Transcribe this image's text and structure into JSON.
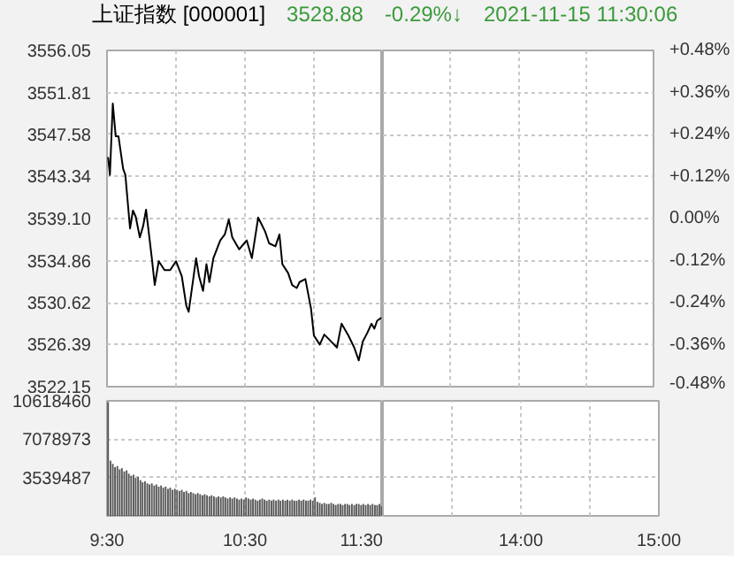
{
  "chart_data": [
    {
      "type": "line",
      "title": "上证指数 [000001]",
      "annotations": [
        "3528.88",
        "-0.29%↓",
        "2021-11-15 11:30:06"
      ],
      "xlim": [
        9.5,
        11.5
      ],
      "xticks": [
        {
          "value": 9.5,
          "label": null
        },
        {
          "value": 10,
          "label": null
        },
        {
          "value": 10.5,
          "label": null
        },
        {
          "value": 11,
          "label": null
        },
        {
          "value": 11.5,
          "label": null
        }
      ],
      "ylim": [
        3522.15,
        3556.05
      ],
      "yticks": [
        {
          "value": 3522.15,
          "label": "3522.15"
        },
        {
          "value": 3526.39,
          "label": "3526.39"
        },
        {
          "value": 3530.62,
          "label": "3530.62"
        },
        {
          "value": 3534.86,
          "label": "3534.86"
        },
        {
          "value": 3539.1,
          "label": "3539.10"
        },
        {
          "value": 3543.34,
          "label": "3543.34"
        },
        {
          "value": 3547.58,
          "label": "3547.58"
        },
        {
          "value": 3551.81,
          "label": "3551.81"
        },
        {
          "value": 3556.05,
          "label": "3556.05"
        }
      ],
      "grid": true,
      "tick_labels": "y",
      "series": [
        {
          "color": "#000000",
          "x": [
            9.508,
            9.521,
            9.542,
            9.563,
            9.583,
            9.617,
            9.633,
            9.667,
            9.688,
            9.708,
            9.738,
            9.763,
            9.783,
            9.825,
            9.846,
            9.875,
            9.917,
            9.958,
            10,
            10.042,
            10.075,
            10.092,
            10.146,
            10.167,
            10.196,
            10.221,
            10.242,
            10.271,
            10.321,
            10.354,
            10.383,
            10.408,
            10.458,
            10.513,
            10.55,
            10.596,
            10.646,
            10.675,
            10.721,
            10.75,
            10.771,
            10.813,
            10.842,
            10.875,
            10.896,
            10.938,
            10.979,
            11,
            11.042,
            11.075,
            11.104,
            11.167,
            11.2,
            11.25,
            11.292,
            11.325,
            11.354,
            11.388,
            11.417,
            11.438,
            11.458,
            11.488
          ],
          "values": [
            3545.3,
            3543.5,
            3550.7,
            3547.4,
            3547.4,
            3544.1,
            3543.5,
            3538.1,
            3539.9,
            3539.3,
            3537.2,
            3538.4,
            3540.0,
            3535.1,
            3532.4,
            3534.8,
            3533.9,
            3533.9,
            3534.8,
            3533.3,
            3530.3,
            3529.7,
            3535.1,
            3533.3,
            3531.8,
            3534.5,
            3532.7,
            3535.1,
            3536.9,
            3537.5,
            3539.0,
            3537.2,
            3536.0,
            3536.9,
            3535.1,
            3539.2,
            3537.8,
            3536.6,
            3536.3,
            3537.5,
            3534.5,
            3533.6,
            3532.4,
            3532.1,
            3532.7,
            3533.0,
            3530.0,
            3527.3,
            3526.4,
            3527.4,
            3527.0,
            3526.1,
            3528.5,
            3527.3,
            3526.1,
            3524.8,
            3526.7,
            3527.6,
            3528.5,
            3528.0,
            3528.8,
            3529.1
          ]
        }
      ]
    },
    {
      "type": "line",
      "xlim": [
        13,
        15
      ],
      "xticks": [
        {
          "value": 13.5,
          "label": null
        },
        {
          "value": 14,
          "label": null
        },
        {
          "value": 14.5,
          "label": null
        },
        {
          "value": 15,
          "label": null
        }
      ],
      "y2lim": [
        -0.48,
        0.48
      ],
      "y2ticks": [
        {
          "value": -0.48,
          "label": "-0.48%"
        },
        {
          "value": -0.36,
          "label": "-0.36%"
        },
        {
          "value": -0.24,
          "label": "-0.24%"
        },
        {
          "value": -0.12,
          "label": "-0.12%"
        },
        {
          "value": 0,
          "label": "0.00%"
        },
        {
          "value": 0.12,
          "label": "+0.12%"
        },
        {
          "value": 0.24,
          "label": "+0.24%"
        },
        {
          "value": 0.36,
          "label": "+0.36%"
        },
        {
          "value": 0.48,
          "label": "+0.48%"
        }
      ],
      "grid": true,
      "tick_labels": "y"
    },
    {
      "type": "bar",
      "xlim": [
        9.5,
        11.5
      ],
      "xticks": [
        {
          "value": 9.5,
          "label": "9:30"
        },
        {
          "value": 10,
          "label": null
        },
        {
          "value": 10.5,
          "label": "10:30"
        },
        {
          "value": 11,
          "label": null
        },
        {
          "value": 11.5,
          "label": "11:30"
        }
      ],
      "ylim": [
        0,
        10618460
      ],
      "yticks": [
        {
          "value": 0,
          "label": null
        },
        3539487,
        7078973,
        10618460
      ],
      "grid": true,
      "series": [
        {
          "color": "#555555",
          "x": [
            9.508,
            9.525,
            9.542,
            9.558,
            9.575,
            9.592,
            9.608,
            9.625,
            9.642,
            9.658,
            9.675,
            9.692,
            9.708,
            9.725,
            9.742,
            9.758,
            9.775,
            9.792,
            9.808,
            9.825,
            9.842,
            9.858,
            9.875,
            9.892,
            9.908,
            9.925,
            9.942,
            9.958,
            9.975,
            9.992,
            10.008,
            10.025,
            10.042,
            10.058,
            10.075,
            10.092,
            10.108,
            10.125,
            10.142,
            10.158,
            10.175,
            10.192,
            10.208,
            10.225,
            10.242,
            10.258,
            10.275,
            10.292,
            10.308,
            10.325,
            10.342,
            10.358,
            10.375,
            10.392,
            10.408,
            10.425,
            10.442,
            10.458,
            10.475,
            10.492,
            10.508,
            10.525,
            10.542,
            10.558,
            10.575,
            10.592,
            10.608,
            10.625,
            10.642,
            10.658,
            10.675,
            10.692,
            10.708,
            10.725,
            10.742,
            10.758,
            10.775,
            10.792,
            10.808,
            10.825,
            10.842,
            10.858,
            10.875,
            10.892,
            10.908,
            10.925,
            10.942,
            10.958,
            10.975,
            10.992,
            11.008,
            11.025,
            11.042,
            11.058,
            11.075,
            11.092,
            11.108,
            11.125,
            11.142,
            11.158,
            11.175,
            11.192,
            11.208,
            11.225,
            11.242,
            11.258,
            11.275,
            11.292,
            11.308,
            11.325,
            11.342,
            11.358,
            11.375,
            11.392,
            11.408,
            11.425,
            11.442,
            11.458,
            11.475,
            11.492
          ],
          "values": [
            10500000,
            5100000,
            4800000,
            4500000,
            4600000,
            4300000,
            4400000,
            4100000,
            4200000,
            3900000,
            3700000,
            3800000,
            3500000,
            3600000,
            3300000,
            3100000,
            3200000,
            3000000,
            2900000,
            3000000,
            2800000,
            2900000,
            2700000,
            2800000,
            2600000,
            2700000,
            2500000,
            2600000,
            2400000,
            2500000,
            2400000,
            2300000,
            2400000,
            2200000,
            2300000,
            2100000,
            2200000,
            2100000,
            2000000,
            2100000,
            2000000,
            1900000,
            2000000,
            1900000,
            1800000,
            1900000,
            1800000,
            1700000,
            1800000,
            1700000,
            1800000,
            1700000,
            1600000,
            1700000,
            1600000,
            1700000,
            1600000,
            1500000,
            1600000,
            1500000,
            1700000,
            1600000,
            1500000,
            1600000,
            1500000,
            1400000,
            1500000,
            1600000,
            1500000,
            1400000,
            1500000,
            1400000,
            1500000,
            1400000,
            1500000,
            1400000,
            1500000,
            1400000,
            1500000,
            1400000,
            1500000,
            1400000,
            1400000,
            1500000,
            1400000,
            1500000,
            1400000,
            1400000,
            1500000,
            1400000,
            1700000,
            1300000,
            1200000,
            1100000,
            1200000,
            1100000,
            1100000,
            1200000,
            1100000,
            1000000,
            1100000,
            1100000,
            1000000,
            1100000,
            1100000,
            1000000,
            1100000,
            1000000,
            1100000,
            1100000,
            1000000,
            1100000,
            1000000,
            1100000,
            1000000,
            1100000,
            1000000,
            1000000,
            1100000,
            900000
          ]
        }
      ]
    },
    {
      "type": "bar",
      "xlim": [
        13,
        15
      ],
      "xticks": [
        {
          "value": 13.5,
          "label": null
        },
        {
          "value": 14,
          "label": "14:00"
        },
        {
          "value": 14.5,
          "label": null
        },
        {
          "value": 15,
          "label": "15:00"
        }
      ],
      "ylim": [
        0,
        10618460
      ],
      "yticks": [
        {
          "value": 0,
          "label": null
        },
        3539487,
        7078973,
        10618460
      ],
      "grid": true,
      "tick_labels": "x"
    }
  ]
}
